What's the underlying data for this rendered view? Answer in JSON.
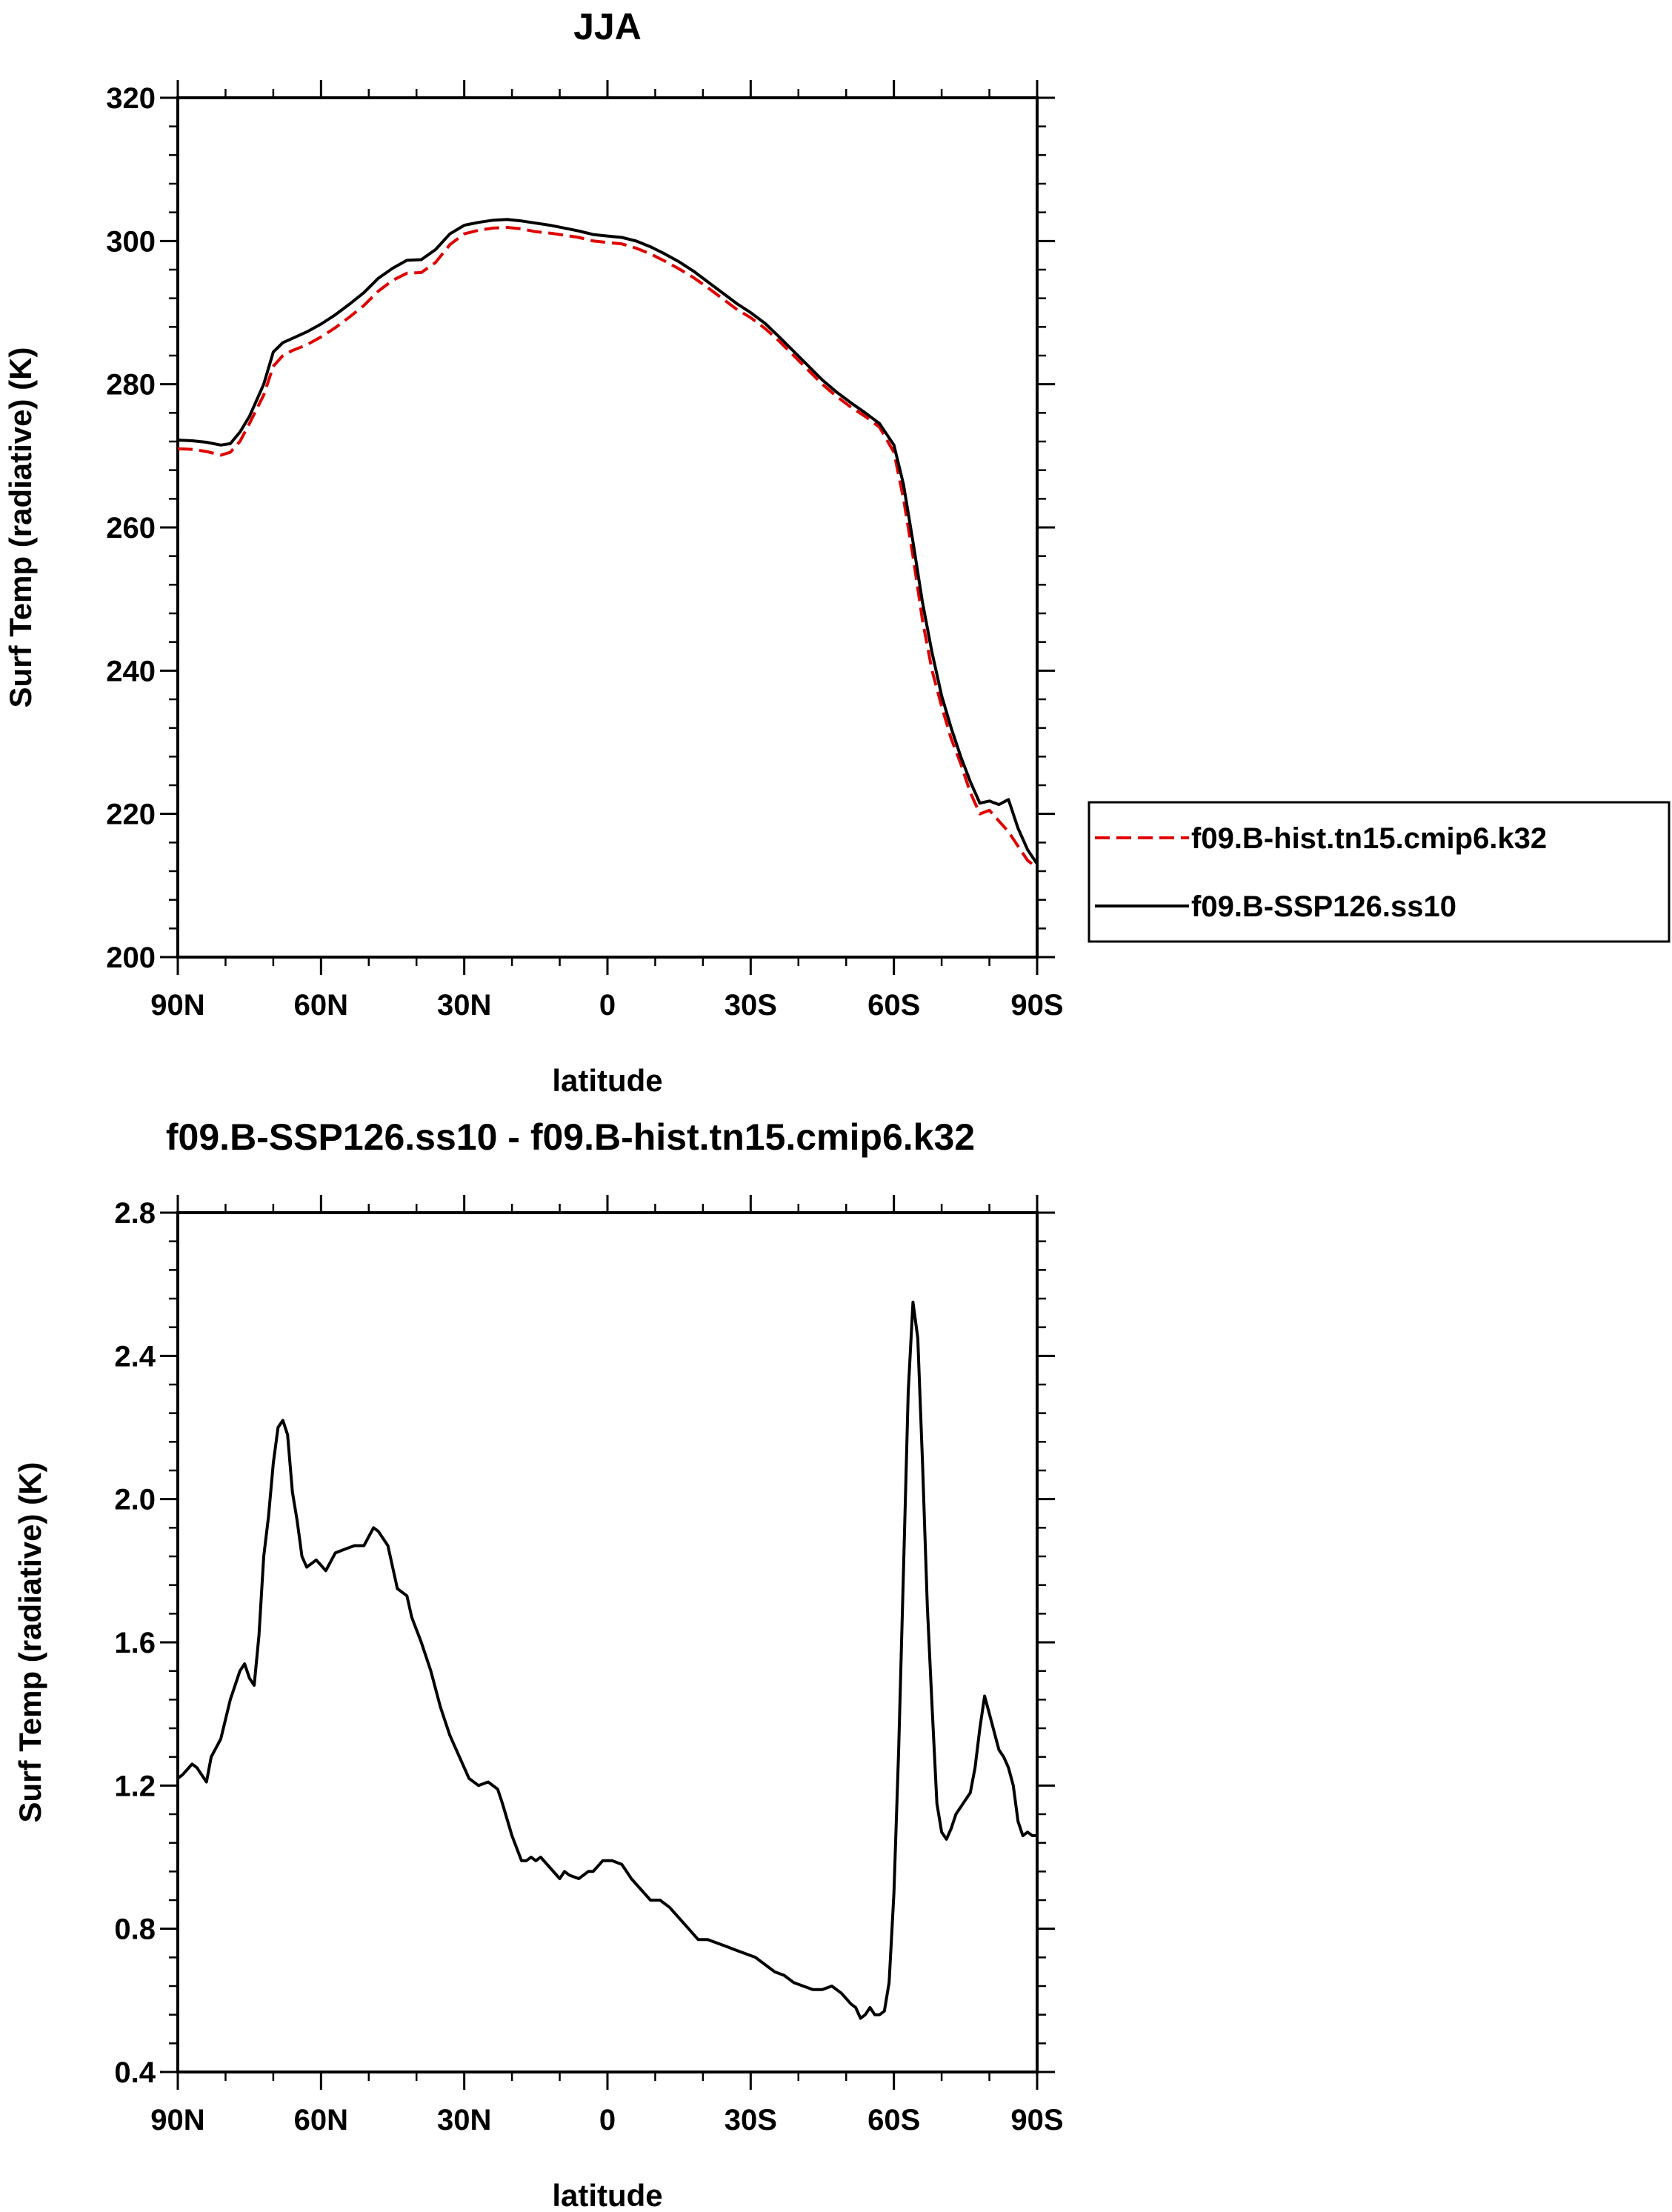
{
  "colors": {
    "hist": "#e00000",
    "ssp": "#000000",
    "frame": "#000000"
  },
  "chart_data": [
    {
      "type": "line",
      "title": "JJA",
      "xlabel": "latitude",
      "ylabel": "Surf Temp (radiative) (K)",
      "xlim": [
        90,
        -90
      ],
      "ylim": [
        200,
        320
      ],
      "x_ticks": [
        90,
        60,
        30,
        0,
        -30,
        -60,
        -90
      ],
      "x_tick_labels": [
        "90N",
        "60N",
        "30N",
        "0",
        "30S",
        "60S",
        "90S"
      ],
      "y_ticks": [
        200,
        220,
        240,
        260,
        280,
        300,
        320
      ],
      "y_tick_labels": [
        "200",
        "220",
        "240",
        "260",
        "280",
        "300",
        "320"
      ],
      "legend": {
        "position": "right",
        "entries": [
          "f09.B-hist.tn15.cmip6.k32",
          "f09.B-SSP126.ss10"
        ]
      },
      "series": [
        {
          "name": "f09.B-hist.tn15.cmip6.k32",
          "style": "dashed",
          "color": "#e00000",
          "x": [
            90,
            87,
            84,
            81,
            79,
            77,
            75,
            72,
            70,
            68,
            66,
            63,
            60,
            57,
            54,
            51,
            48,
            45,
            42,
            39,
            36,
            33,
            30,
            27,
            24,
            21,
            18,
            15,
            12,
            9,
            6,
            3,
            0,
            -3,
            -6,
            -9,
            -12,
            -15,
            -18,
            -21,
            -24,
            -27,
            -30,
            -33,
            -36,
            -39,
            -42,
            -45,
            -48,
            -51,
            -54,
            -57,
            -60,
            -62,
            -64,
            -66,
            -68,
            -70,
            -72,
            -74,
            -76,
            -78,
            -80,
            -82,
            -84,
            -86,
            -88,
            -90
          ],
          "y": [
            271,
            270.9,
            270.6,
            270.1,
            270.5,
            272.0,
            274.5,
            278.5,
            282.5,
            284.0,
            284.7,
            285.5,
            286.6,
            287.9,
            289.4,
            291.0,
            293.0,
            294.5,
            295.5,
            295.6,
            297.0,
            299.5,
            301.0,
            301.5,
            301.8,
            301.9,
            301.7,
            301.3,
            301.1,
            300.8,
            300.5,
            300.0,
            299.8,
            299.6,
            299.0,
            298.2,
            297.2,
            296.1,
            294.9,
            293.5,
            292.0,
            290.5,
            289.3,
            287.8,
            286.0,
            284.0,
            282.0,
            280.0,
            278.3,
            276.8,
            275.5,
            274.0,
            270.5,
            264.0,
            256.0,
            247.0,
            240.0,
            235.0,
            230.5,
            227.0,
            223.0,
            220.0,
            220.5,
            219.0,
            217.5,
            215.5,
            213.5,
            212.5
          ]
        },
        {
          "name": "f09.B-SSP126.ss10",
          "style": "solid",
          "color": "#000000",
          "x": [
            90,
            87,
            84,
            81,
            79,
            77,
            75,
            72,
            70,
            68,
            66,
            63,
            60,
            57,
            54,
            51,
            48,
            45,
            42,
            39,
            36,
            33,
            30,
            27,
            24,
            21,
            18,
            15,
            12,
            9,
            6,
            3,
            0,
            -3,
            -6,
            -9,
            -12,
            -15,
            -18,
            -21,
            -24,
            -27,
            -30,
            -33,
            -36,
            -39,
            -42,
            -45,
            -48,
            -51,
            -54,
            -57,
            -60,
            -62,
            -64,
            -66,
            -68,
            -70,
            -72,
            -74,
            -76,
            -78,
            -80,
            -82,
            -84,
            -86,
            -88,
            -90
          ],
          "y": [
            272.2,
            272.1,
            271.9,
            271.5,
            271.7,
            273.3,
            275.5,
            280.0,
            284.5,
            285.8,
            286.4,
            287.3,
            288.4,
            289.7,
            291.2,
            292.8,
            294.8,
            296.2,
            297.3,
            297.4,
            298.8,
            301.0,
            302.2,
            302.6,
            302.9,
            303.0,
            302.8,
            302.5,
            302.2,
            301.8,
            301.4,
            300.9,
            300.7,
            300.5,
            300.0,
            299.2,
            298.2,
            297.1,
            295.8,
            294.3,
            292.8,
            291.3,
            290.0,
            288.5,
            286.6,
            284.6,
            282.6,
            280.6,
            278.9,
            277.4,
            276.0,
            274.5,
            271.5,
            266.0,
            258.0,
            249.5,
            242.5,
            236.5,
            232.0,
            228.0,
            224.5,
            221.5,
            221.8,
            221.3,
            222.0,
            218.0,
            215.0,
            213.0
          ]
        }
      ]
    },
    {
      "type": "line",
      "title": "f09.B-SSP126.ss10 - f09.B-hist.tn15.cmip6.k32",
      "xlabel": "latitude",
      "ylabel": "Surf Temp (radiative) (K)",
      "xlim": [
        90,
        -90
      ],
      "ylim": [
        0.4,
        2.8
      ],
      "x_ticks": [
        90,
        60,
        30,
        0,
        -30,
        -60,
        -90
      ],
      "x_tick_labels": [
        "90N",
        "60N",
        "30N",
        "0",
        "30S",
        "60S",
        "90S"
      ],
      "y_ticks": [
        0.4,
        0.8,
        1.2,
        1.6,
        2.0,
        2.4,
        2.8
      ],
      "y_tick_labels": [
        "0.4",
        "0.8",
        "1.2",
        "1.6",
        "2.0",
        "2.4",
        "2.8"
      ],
      "series": [
        {
          "name": "f09.B-SSP126.ss10 - f09.B-hist.tn15.cmip6.k32",
          "style": "solid",
          "color": "#000000",
          "x": [
            90,
            89,
            87,
            86,
            84,
            83,
            81,
            79,
            77,
            76,
            75,
            74,
            73,
            72,
            71,
            70,
            69,
            68,
            67,
            66,
            65,
            64,
            63,
            61,
            59,
            57,
            55,
            53,
            51,
            49,
            48,
            46,
            44,
            42,
            41,
            39,
            37,
            35,
            33,
            31,
            29,
            27,
            25,
            23,
            22,
            20,
            18,
            17,
            16,
            15,
            14,
            12,
            10,
            9,
            8,
            6,
            4,
            3,
            1,
            -1,
            -3,
            -4,
            -5,
            -7,
            -9,
            -11,
            -13,
            -15,
            -17,
            -19,
            -21,
            -23,
            -25,
            -27,
            -29,
            -31,
            -33,
            -35,
            -37,
            -39,
            -41,
            -43,
            -45,
            -47,
            -49,
            -51,
            -52,
            -53,
            -54,
            -55,
            -56,
            -57,
            -58,
            -59,
            -60,
            -61,
            -62,
            -63,
            -64,
            -65,
            -66,
            -67,
            -68,
            -69,
            -70,
            -71,
            -72,
            -73,
            -74,
            -75,
            -76,
            -77,
            -78,
            -79,
            -80,
            -81,
            -82,
            -83,
            -84,
            -85,
            -86,
            -87,
            -88,
            -89,
            -90
          ],
          "y": [
            1.22,
            1.23,
            1.26,
            1.25,
            1.21,
            1.28,
            1.33,
            1.44,
            1.52,
            1.54,
            1.5,
            1.48,
            1.62,
            1.84,
            1.95,
            2.1,
            2.2,
            2.22,
            2.18,
            2.02,
            1.94,
            1.84,
            1.81,
            1.83,
            1.8,
            1.85,
            1.86,
            1.87,
            1.87,
            1.92,
            1.91,
            1.87,
            1.75,
            1.73,
            1.67,
            1.6,
            1.52,
            1.42,
            1.34,
            1.28,
            1.22,
            1.2,
            1.21,
            1.19,
            1.15,
            1.06,
            0.99,
            0.99,
            1.0,
            0.99,
            1.0,
            0.97,
            0.94,
            0.96,
            0.95,
            0.94,
            0.96,
            0.96,
            0.99,
            0.99,
            0.98,
            0.96,
            0.94,
            0.91,
            0.88,
            0.88,
            0.86,
            0.83,
            0.8,
            0.77,
            0.77,
            0.76,
            0.75,
            0.74,
            0.73,
            0.72,
            0.7,
            0.68,
            0.67,
            0.65,
            0.64,
            0.63,
            0.63,
            0.64,
            0.62,
            0.59,
            0.58,
            0.55,
            0.56,
            0.58,
            0.56,
            0.56,
            0.57,
            0.65,
            0.9,
            1.3,
            1.8,
            2.3,
            2.55,
            2.45,
            2.1,
            1.7,
            1.42,
            1.15,
            1.07,
            1.05,
            1.08,
            1.12,
            1.14,
            1.16,
            1.18,
            1.25,
            1.36,
            1.45,
            1.4,
            1.35,
            1.3,
            1.28,
            1.25,
            1.2,
            1.1,
            1.06,
            1.07,
            1.06,
            1.06
          ]
        }
      ]
    }
  ]
}
